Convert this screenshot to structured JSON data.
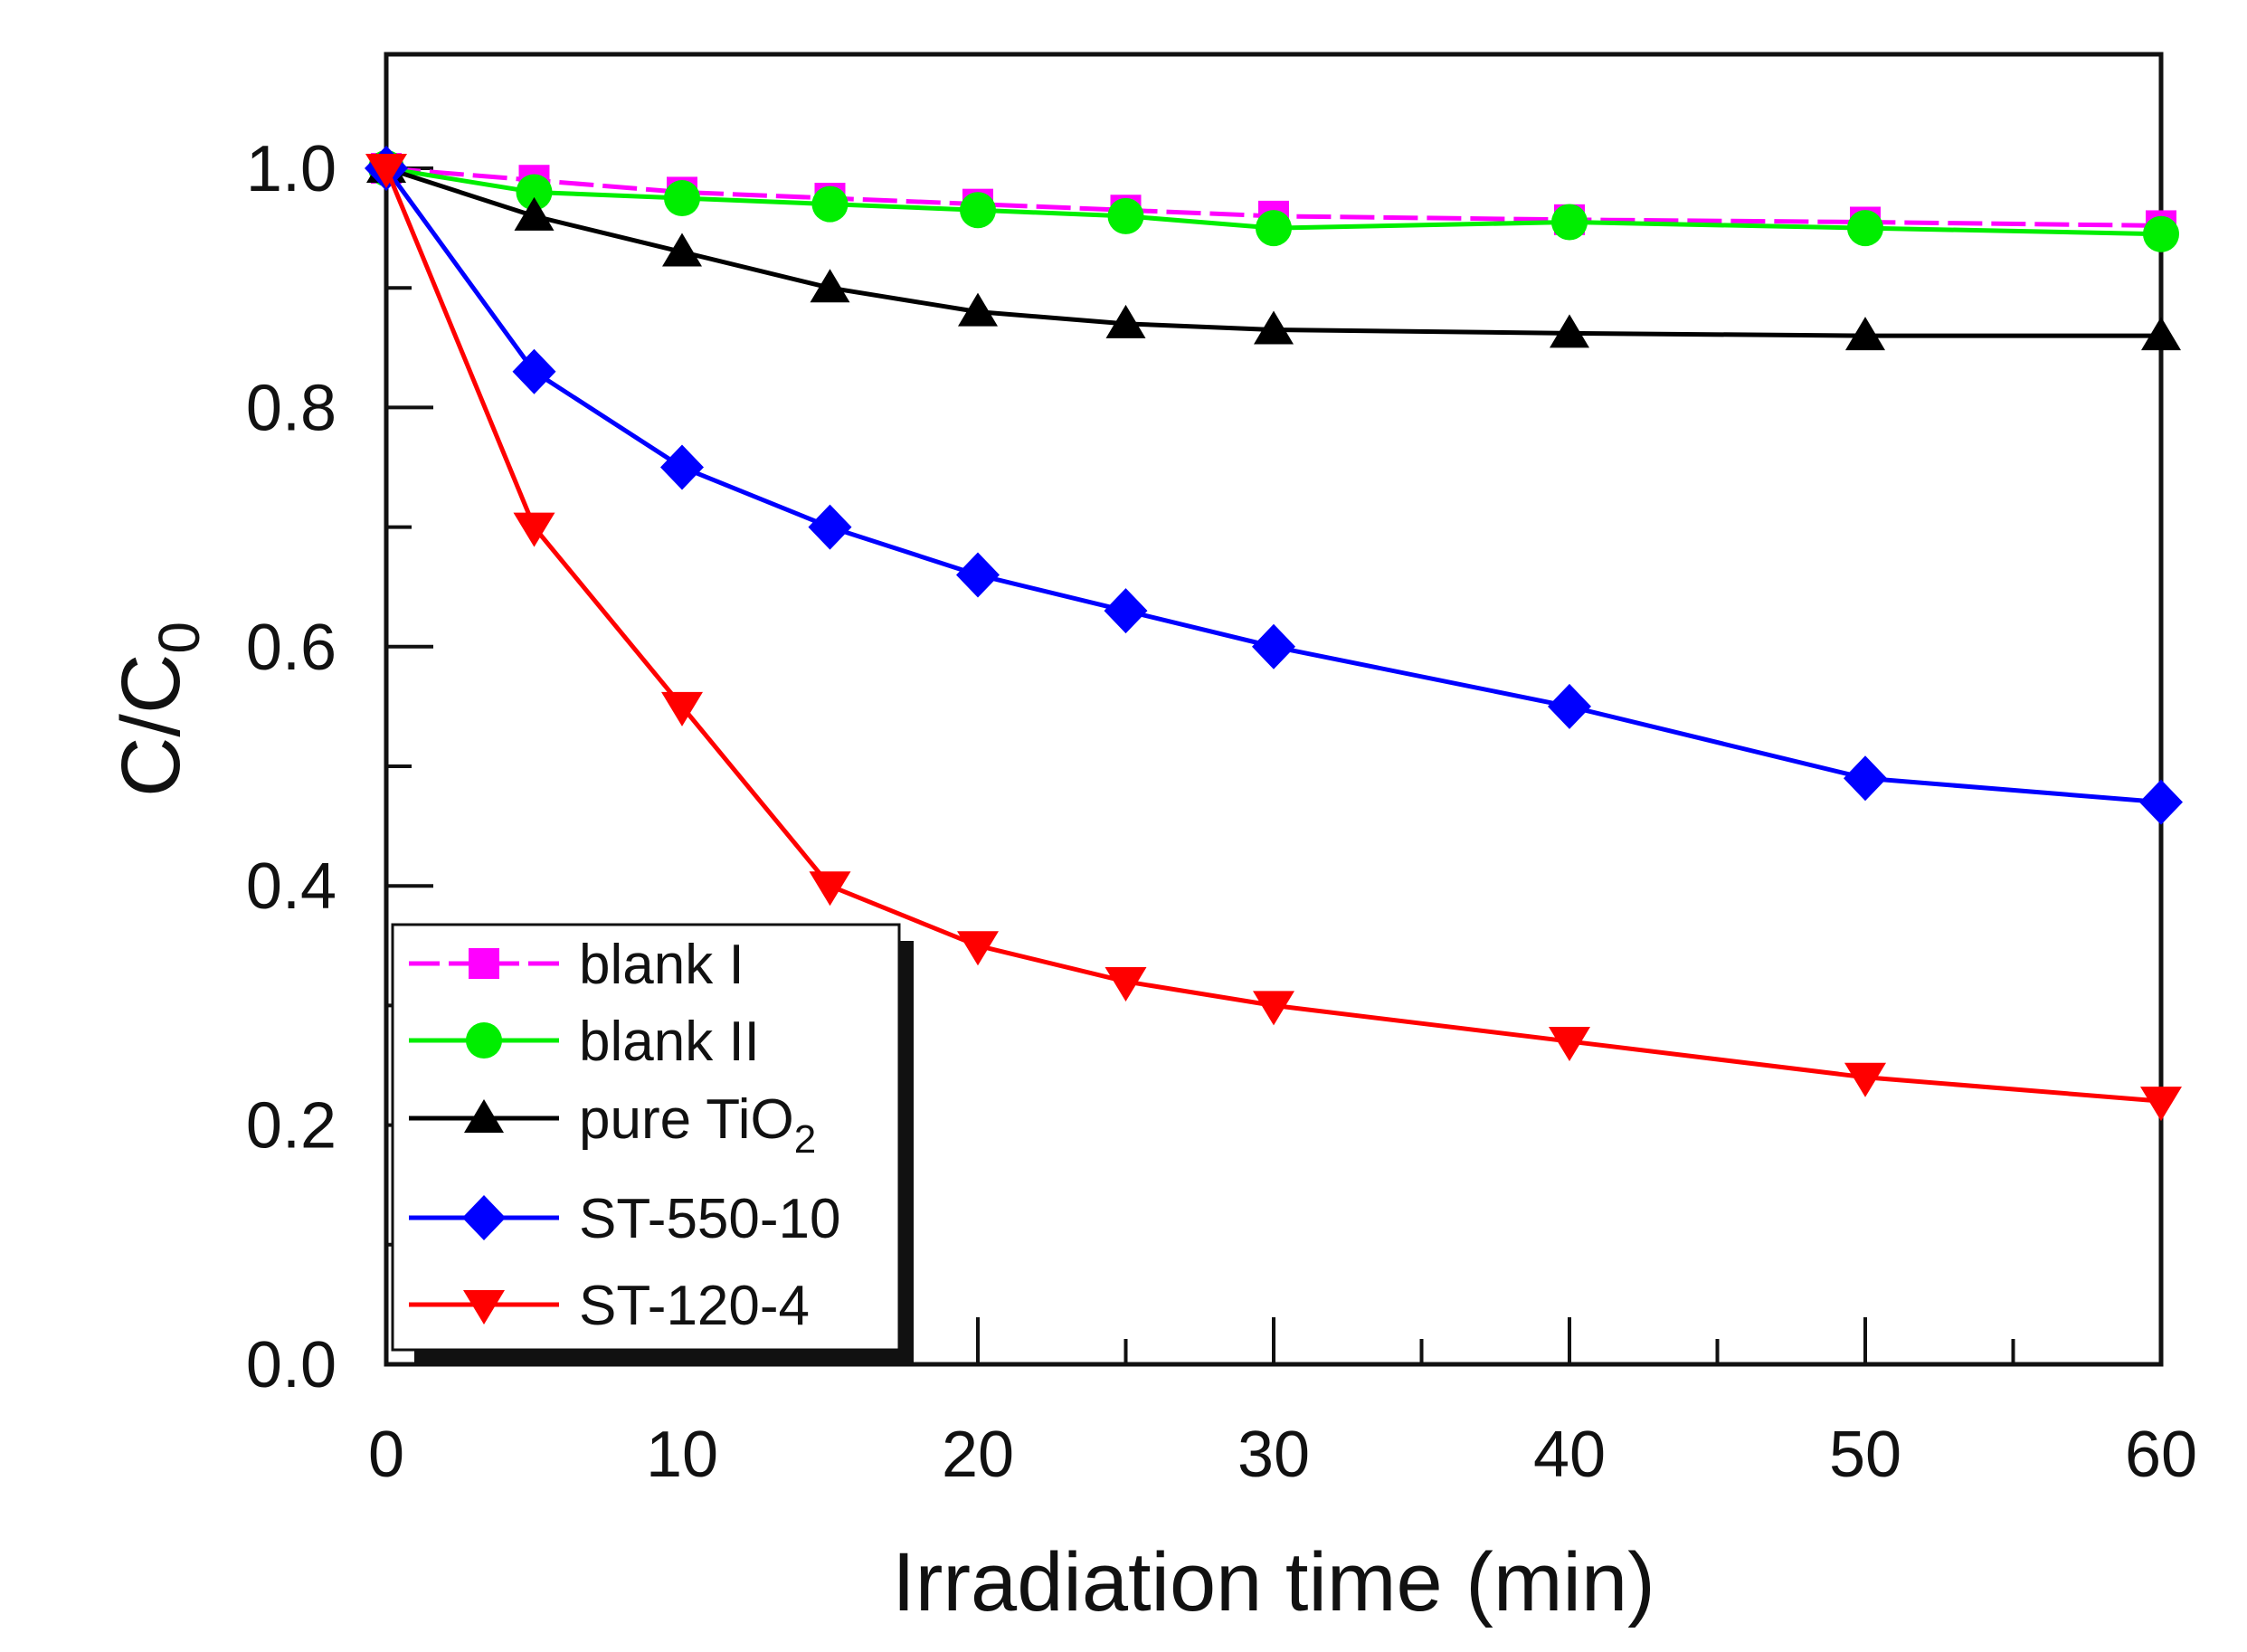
{
  "chart_data": {
    "type": "line",
    "title": "",
    "xlabel": "Irradiation time (min)",
    "ylabel": {
      "main": "C/C",
      "sub": "0"
    },
    "xlim": [
      0,
      60
    ],
    "ylim": [
      0,
      1.1
    ],
    "xticks": [
      "0",
      "10",
      "20",
      "30",
      "40",
      "50",
      "60"
    ],
    "yticks": [
      "0.0",
      "0.2",
      "0.4",
      "0.6",
      "0.8",
      "1.0"
    ],
    "legend_position": "bottom-left",
    "x": [
      0,
      5,
      10,
      15,
      20,
      25,
      30,
      40,
      50,
      60
    ],
    "series": [
      {
        "name": "blank I",
        "label_main": "blank I",
        "label_sub": "",
        "color": "#ff00ff",
        "marker": "square",
        "dashed": true,
        "values": [
          1.0,
          0.99,
          0.98,
          0.975,
          0.97,
          0.965,
          0.96,
          0.957,
          0.955,
          0.952
        ]
      },
      {
        "name": "blank II",
        "label_main": "blank II",
        "label_sub": "",
        "color": "#00ee00",
        "marker": "circle",
        "dashed": false,
        "values": [
          1.0,
          0.98,
          0.975,
          0.97,
          0.965,
          0.96,
          0.95,
          0.955,
          0.95,
          0.945
        ]
      },
      {
        "name": "pure TiO2",
        "label_main": "pure TiO",
        "label_sub": "2",
        "color": "#000000",
        "marker": "triangle-up",
        "dashed": false,
        "values": [
          1.0,
          0.96,
          0.93,
          0.9,
          0.88,
          0.87,
          0.865,
          0.862,
          0.86,
          0.86
        ]
      },
      {
        "name": "ST-550-10",
        "label_main": "ST-550-10",
        "label_sub": "",
        "color": "#0000ff",
        "marker": "diamond",
        "dashed": false,
        "values": [
          1.0,
          0.83,
          0.75,
          0.7,
          0.66,
          0.63,
          0.6,
          0.55,
          0.49,
          0.47
        ]
      },
      {
        "name": "ST-120-4",
        "label_main": "ST-120-4",
        "label_sub": "",
        "color": "#ff0000",
        "marker": "triangle-down",
        "dashed": false,
        "values": [
          1.0,
          0.7,
          0.55,
          0.4,
          0.35,
          0.32,
          0.3,
          0.27,
          0.24,
          0.22
        ]
      }
    ]
  }
}
